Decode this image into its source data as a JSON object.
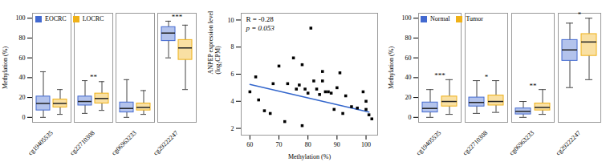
{
  "chart_data": [
    {
      "type": "box",
      "ylabel": "Methylation (%)",
      "ylim": [
        -5,
        105
      ],
      "yticks": [
        0,
        20,
        40,
        60,
        80,
        100
      ],
      "categories": [
        "cg19405535",
        "cg22710308",
        "cg06963233",
        "cg29222247"
      ],
      "series": [
        {
          "name": "EOCRC",
          "values": [
            {
              "q1": 7,
              "median": 14,
              "q3": 21,
              "whislo": 0,
              "whishi": 46
            },
            {
              "q1": 12,
              "median": 16,
              "q3": 21,
              "whislo": 4,
              "whishi": 37
            },
            {
              "q1": 5,
              "median": 9,
              "q3": 15,
              "whislo": 0,
              "whishi": 38
            },
            {
              "q1": 77,
              "median": 85,
              "q3": 91,
              "whislo": 60,
              "whishi": 97
            }
          ]
        },
        {
          "name": "LOCRC",
          "values": [
            {
              "q1": 10,
              "median": 14,
              "q3": 18,
              "whislo": 3,
              "whishi": 28
            },
            {
              "q1": 14,
              "median": 19,
              "q3": 24,
              "whislo": 7,
              "whishi": 36
            },
            {
              "q1": 7,
              "median": 10,
              "q3": 14,
              "whislo": 3,
              "whishi": 27
            },
            {
              "q1": 58,
              "median": 70,
              "q3": 78,
              "whislo": 28,
              "whishi": 93
            }
          ]
        }
      ],
      "significance": [
        null,
        "**",
        null,
        "***"
      ],
      "legend": "upper left"
    },
    {
      "type": "scatter",
      "xlabel": "Methylation (%)",
      "ylabel": "ANPEP expression level\n(log₂CPM)",
      "xlim": [
        57,
        104
      ],
      "ylim": [
        1.5,
        10.5
      ],
      "xticks": [
        60,
        70,
        80,
        90,
        100
      ],
      "yticks": [
        2,
        4,
        6,
        8,
        10
      ],
      "marker": "square",
      "x": [
        60,
        62,
        63,
        65,
        67,
        68,
        70,
        72,
        73,
        75,
        76,
        77,
        78,
        78,
        79,
        80,
        81,
        82,
        83,
        84,
        85,
        85,
        86,
        87,
        88,
        89,
        90,
        91,
        92,
        93,
        95,
        97,
        99,
        100,
        100,
        101,
        102
      ],
      "values": [
        4.7,
        5.8,
        4.1,
        3.3,
        3.1,
        5.3,
        6.6,
        2.5,
        5.3,
        7.2,
        4.9,
        5.2,
        6.7,
        2.2,
        4.9,
        4.6,
        9.4,
        5.5,
        4.9,
        4.5,
        6.2,
        5.5,
        4.7,
        4.7,
        4.6,
        3.4,
        5.0,
        6.1,
        3.1,
        4.4,
        3.6,
        3.5,
        4.7,
        3.4,
        4.0,
        3.0,
        2.7
      ],
      "fit_line": {
        "x": [
          60,
          101
        ],
        "values": [
          5.25,
          3.2
        ],
        "color": "#3366CC"
      },
      "annotations": [
        "R = -0.28",
        "p = 0.053"
      ]
    },
    {
      "type": "box",
      "ylabel": "Methylation (%)",
      "ylim": [
        -5,
        105
      ],
      "yticks": [
        0,
        20,
        40,
        60,
        80,
        100
      ],
      "categories": [
        "cg19405535",
        "cg22710308",
        "cg06963233",
        "cg29222247"
      ],
      "series": [
        {
          "name": "Normal",
          "values": [
            {
              "q1": 5,
              "median": 9,
              "q3": 15,
              "whislo": 0,
              "whishi": 28
            },
            {
              "q1": 11,
              "median": 15,
              "q3": 20,
              "whislo": 4,
              "whishi": 37
            },
            {
              "q1": 3,
              "median": 6,
              "q3": 9,
              "whislo": 0,
              "whishi": 16
            },
            {
              "q1": 57,
              "median": 68,
              "q3": 78,
              "whislo": 30,
              "whishi": 95
            }
          ]
        },
        {
          "name": "Tumor",
          "values": [
            {
              "q1": 11,
              "median": 16,
              "q3": 21,
              "whislo": 3,
              "whishi": 38
            },
            {
              "q1": 12,
              "median": 16,
              "q3": 22,
              "whislo": 5,
              "whishi": 37
            },
            {
              "q1": 7,
              "median": 10,
              "q3": 14,
              "whislo": 3,
              "whishi": 28
            },
            {
              "q1": 62,
              "median": 76,
              "q3": 84,
              "whislo": 38,
              "whishi": 100
            }
          ]
        }
      ],
      "significance": [
        "***",
        "*",
        "**",
        "*"
      ],
      "legend": "upper left"
    }
  ]
}
